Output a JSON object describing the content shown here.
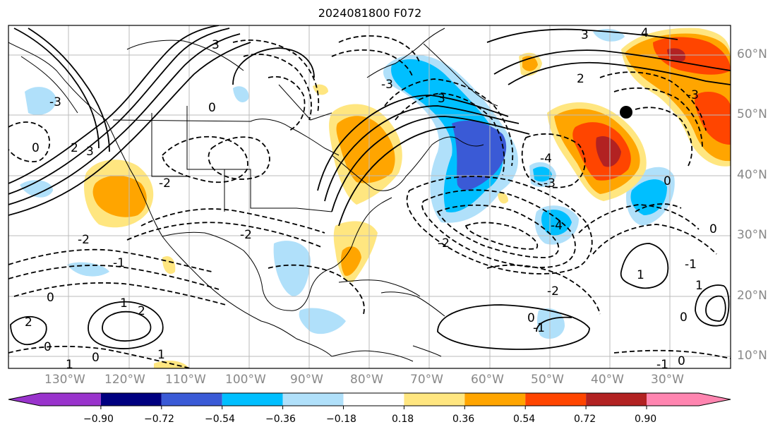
{
  "title": "2024081800 F072",
  "longitude_labels": [
    "130°W",
    "120°W",
    "110°W",
    "100°W",
    "90°W",
    "80°W",
    "70°W",
    "60°W",
    "50°W",
    "40°W",
    "30°W"
  ],
  "latitude_labels": [
    "60°N",
    "50°N",
    "40°N",
    "30°N",
    "20°N",
    "10°N"
  ],
  "colorbar": {
    "ticks": [
      "−0.90",
      "−0.72",
      "−0.54",
      "−0.36",
      "−0.18",
      "0.18",
      "0.36",
      "0.54",
      "0.72",
      "0.90"
    ],
    "colors": [
      "#9933cc",
      "#000080",
      "#3a5ad6",
      "#00bfff",
      "#b0e0fa",
      "#ffffff",
      "#ffe680",
      "#ffa500",
      "#ff4500",
      "#b22222",
      "#ff85b0"
    ]
  },
  "contour_labels": [
    "3",
    "2",
    "1",
    "0",
    "-1",
    "-2",
    "-3",
    "-4",
    "4"
  ],
  "marker": {
    "name": "station-dot",
    "color": "#000000"
  }
}
